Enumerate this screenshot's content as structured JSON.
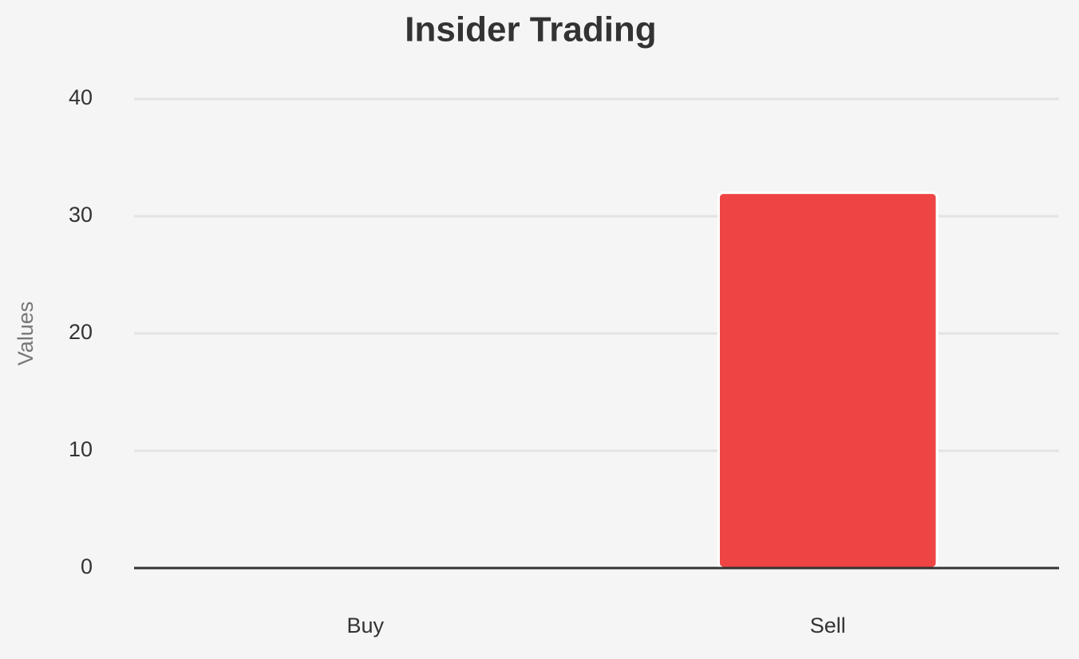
{
  "chart_data": {
    "type": "bar",
    "title": "Insider Trading",
    "y_label": "Values",
    "categories": [
      "Buy",
      "Sell"
    ],
    "values": [
      0,
      32
    ],
    "color": "#ef4444",
    "ylim": [
      0,
      40
    ],
    "yticks": [
      0,
      10,
      20,
      30,
      40
    ],
    "grid": true
  }
}
